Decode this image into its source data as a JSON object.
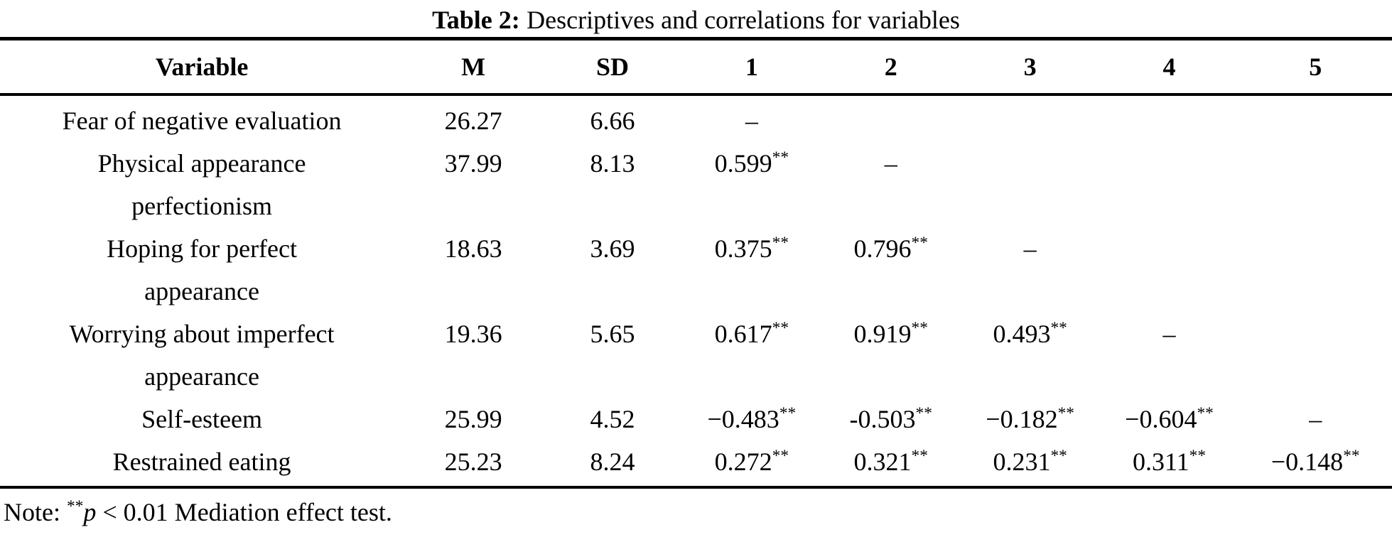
{
  "title": {
    "label": "Table 2:",
    "text": "Descriptives and correlations for variables"
  },
  "table": {
    "columns": [
      "Variable",
      "M",
      "SD",
      "1",
      "2",
      "3",
      "4",
      "5"
    ],
    "rows": [
      {
        "variable_lines": [
          "Fear of negative evaluation"
        ],
        "m": "26.27",
        "sd": "6.66",
        "correlations": [
          "–",
          "",
          "",
          "",
          ""
        ]
      },
      {
        "variable_lines": [
          "Physical appearance",
          "perfectionism"
        ],
        "m": "37.99",
        "sd": "8.13",
        "correlations": [
          "0.599**",
          "–",
          "",
          "",
          ""
        ]
      },
      {
        "variable_lines": [
          "Hoping for perfect",
          "appearance"
        ],
        "m": "18.63",
        "sd": "3.69",
        "correlations": [
          "0.375**",
          "0.796**",
          "–",
          "",
          ""
        ]
      },
      {
        "variable_lines": [
          "Worrying about imperfect",
          "appearance"
        ],
        "m": "19.36",
        "sd": "5.65",
        "correlations": [
          "0.617**",
          "0.919**",
          "0.493**",
          "–",
          ""
        ]
      },
      {
        "variable_lines": [
          "Self-esteem"
        ],
        "m": "25.99",
        "sd": "4.52",
        "correlations": [
          "−0.483**",
          "-0.503**",
          "−0.182**",
          "−0.604**",
          "–"
        ]
      },
      {
        "variable_lines": [
          "Restrained eating"
        ],
        "m": "25.23",
        "sd": "8.24",
        "correlations": [
          "0.272**",
          "0.321**",
          "0.231**",
          "0.311**",
          "−0.148**"
        ]
      }
    ]
  },
  "note": {
    "prefix": "Note: ",
    "stars": "**",
    "p_symbol": "p",
    "text": " < 0.01 Mediation effect test."
  }
}
